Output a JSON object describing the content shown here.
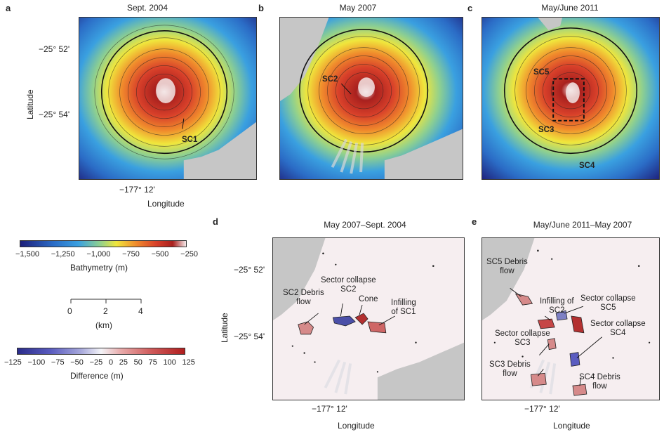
{
  "panels": {
    "a": {
      "letter": "a",
      "title": "Sept. 2004",
      "labels": {
        "sc1": "SC1"
      }
    },
    "b": {
      "letter": "b",
      "title": "May 2007",
      "labels": {
        "sc2": "SC2"
      }
    },
    "c": {
      "letter": "c",
      "title": "May/June 2011",
      "labels": {
        "sc5": "SC5",
        "sc3": "SC3",
        "sc4": "SC4"
      }
    },
    "d": {
      "letter": "d",
      "title": "May 2007–Sept. 2004",
      "labels": {
        "sc2_debris": "SC2 Debris\nflow",
        "sector_collapse_sc2": "Sector collapse\nSC2",
        "cone": "Cone",
        "infilling_sc1": "Infilling\nof SC1"
      }
    },
    "e": {
      "letter": "e",
      "title": "May/June 2011–May 2007",
      "labels": {
        "sc5_debris": "SC5 Debris\nflow",
        "infilling_sc2": "Infilling of\nSC2",
        "sector_collapse_sc5": "Sector collapse\nSC5",
        "sector_collapse_sc3": "Sector collapse\nSC3",
        "sector_collapse_sc4": "Sector collapse\nSC4",
        "sc3_debris": "SC3 Debris\nflow",
        "sc4_debris": "SC4  Debris\nflow"
      }
    }
  },
  "axes": {
    "lat_label": "Latitude",
    "lon_label": "Longitude",
    "lat_ticks": [
      "−25° 52'",
      "−25° 54'"
    ],
    "lon_tick": "−177° 12'"
  },
  "legends": {
    "bathymetry": {
      "ticks": [
        "−1,500",
        "−1,250",
        "−1,000",
        "−750",
        "−500",
        "−250"
      ],
      "label": "Bathymetry (m)"
    },
    "scale": {
      "ticks": [
        "0",
        "2",
        "4"
      ],
      "label": "(km)"
    },
    "difference": {
      "ticks": [
        "−125",
        "−100",
        "−75",
        "−50",
        "−25",
        "0",
        "25",
        "50",
        "75",
        "100",
        "125"
      ],
      "label": "Difference (m)"
    }
  },
  "colors": {
    "deep": "#1e1f7a",
    "mid": "#2f8fd6",
    "shallow": "#f0e63c",
    "peak": "#a8201e",
    "gray": "#c6c6c6",
    "diff_neg": "#2b2c8a",
    "diff_pos": "#b01e1e"
  }
}
